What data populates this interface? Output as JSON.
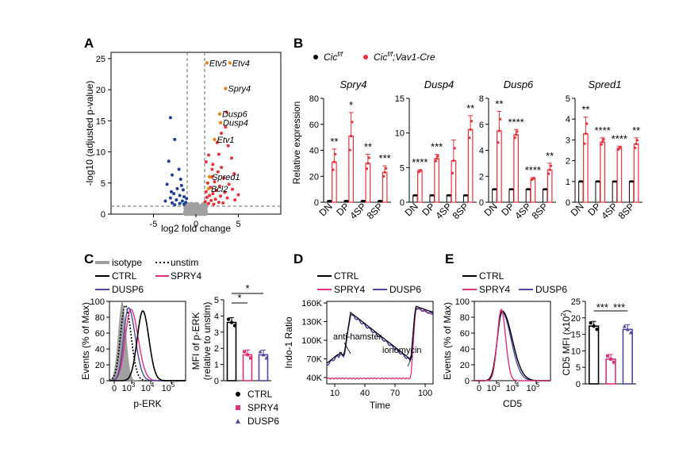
{
  "panels": {
    "A": "A",
    "B": "B",
    "C": "C",
    "D": "D",
    "E": "E"
  },
  "colors": {
    "ctrl": "#000000",
    "cre": "#e8323a",
    "spry4": "#e0307a",
    "dusp6": "#4f46a0",
    "blue_pts": "#1f3f95",
    "grey": "#a0a0a0",
    "gene_label_orange": "#e08a1e"
  },
  "chart_data": [
    {
      "id": "A",
      "type": "scatter",
      "xlabel": "log2 fold change",
      "ylabel": "-log10 (adjusted p-value)",
      "xlim": [
        -10,
        10
      ],
      "ylim": [
        0,
        26
      ],
      "xticks": [
        "-5",
        "0",
        "5"
      ],
      "yticks": [
        "0",
        "5",
        "10",
        "15",
        "20",
        "25"
      ],
      "thresholds": {
        "x": [
          -1,
          1
        ],
        "y": 1.3
      },
      "labeled_genes": [
        {
          "name": "Etv5",
          "x": 1.3,
          "y": 24.3
        },
        {
          "name": "Etv4",
          "x": 4.0,
          "y": 24.3
        },
        {
          "name": "Spry4",
          "x": 3.5,
          "y": 20.2
        },
        {
          "name": "Dusp6",
          "x": 2.8,
          "y": 16.1
        },
        {
          "name": "Dusp4",
          "x": 2.9,
          "y": 14.7
        },
        {
          "name": "Etv1",
          "x": 2.2,
          "y": 12.0
        },
        {
          "name": "Spred1",
          "x": 1.6,
          "y": 6.0
        },
        {
          "name": "Bcl2",
          "x": 1.5,
          "y": 4.1
        }
      ],
      "blue_points": [
        [
          -3.0,
          15.5
        ],
        [
          -2.5,
          12.0
        ],
        [
          -3.2,
          8.5
        ],
        [
          -2.0,
          7.2
        ],
        [
          -2.8,
          6.3
        ],
        [
          -1.8,
          5.6
        ],
        [
          -3.4,
          4.8
        ],
        [
          -2.2,
          4.1
        ],
        [
          -1.5,
          3.9
        ],
        [
          -2.6,
          3.3
        ],
        [
          -1.9,
          3.0
        ],
        [
          -1.4,
          2.8
        ],
        [
          -3.0,
          2.6
        ],
        [
          -2.3,
          2.3
        ],
        [
          -1.6,
          2.1
        ],
        [
          -1.2,
          1.9
        ],
        [
          -2.8,
          1.8
        ],
        [
          -1.9,
          1.7
        ],
        [
          -1.4,
          1.6
        ],
        [
          -2.5,
          1.5
        ],
        [
          -3.6,
          2.1
        ],
        [
          -1.1,
          2.5
        ],
        [
          -1.7,
          4.6
        ],
        [
          -2.9,
          3.6
        ]
      ],
      "red_points": [
        [
          3.5,
          14.0
        ],
        [
          3.0,
          13.0
        ],
        [
          2.5,
          11.5
        ],
        [
          3.8,
          11.0
        ],
        [
          1.5,
          9.5
        ],
        [
          4.2,
          9.0
        ],
        [
          2.0,
          8.0
        ],
        [
          3.0,
          7.5
        ],
        [
          2.6,
          6.8
        ],
        [
          4.5,
          6.5
        ],
        [
          1.9,
          6.0
        ],
        [
          3.3,
          5.8
        ],
        [
          2.2,
          5.2
        ],
        [
          1.4,
          5.0
        ],
        [
          3.9,
          4.8
        ],
        [
          2.8,
          4.5
        ],
        [
          1.7,
          4.3
        ],
        [
          4.3,
          4.0
        ],
        [
          2.4,
          3.8
        ],
        [
          1.2,
          3.6
        ],
        [
          3.4,
          3.5
        ],
        [
          2.0,
          3.3
        ],
        [
          1.6,
          3.0
        ],
        [
          2.9,
          2.9
        ],
        [
          1.3,
          2.7
        ],
        [
          3.7,
          2.6
        ],
        [
          2.3,
          2.4
        ],
        [
          1.8,
          2.2
        ],
        [
          1.1,
          2.0
        ],
        [
          2.7,
          1.9
        ],
        [
          3.2,
          1.8
        ],
        [
          1.5,
          1.7
        ],
        [
          2.1,
          1.6
        ],
        [
          4.6,
          2.3
        ],
        [
          5.0,
          3.1
        ],
        [
          1.9,
          7.2
        ],
        [
          1.2,
          8.4
        ],
        [
          2.7,
          9.6
        ],
        [
          3.6,
          16.4
        ]
      ]
    },
    {
      "id": "B",
      "type": "bar",
      "legend": {
        "ctrl": "Cic",
        "ctrl_sup": "f/f",
        "cre": "Cic",
        "cre_sup": "f/f",
        "cre_suffix": ";Vav1-Cre"
      },
      "ylabel": "Relative expression",
      "categories": [
        "DN",
        "DP",
        "4SP",
        "8SP"
      ],
      "subplots": [
        {
          "gene": "Spry4",
          "ylim": [
            0,
            80
          ],
          "yticks": [
            "0",
            "20",
            "40",
            "60",
            "80"
          ],
          "ctrl": [
            1,
            1,
            1,
            1
          ],
          "cre": [
            31,
            51,
            30,
            23
          ],
          "err": [
            10,
            18,
            7,
            5
          ],
          "sig": [
            "**",
            "*",
            "**",
            "***"
          ]
        },
        {
          "gene": "Dusp4",
          "ylim": [
            0,
            15
          ],
          "yticks": [
            "0",
            "5",
            "10",
            "15"
          ],
          "ctrl": [
            1,
            1,
            1,
            1
          ],
          "cre": [
            4.5,
            6.3,
            6.0,
            10.5
          ],
          "err": [
            0.2,
            0.6,
            3.0,
            2.0
          ],
          "sig": [
            "****",
            "***",
            "",
            "**"
          ]
        },
        {
          "gene": "Dusp6",
          "ylim": [
            0,
            8
          ],
          "yticks": [
            "0",
            "2",
            "4",
            "6",
            "8"
          ],
          "ctrl": [
            1,
            1,
            1,
            1
          ],
          "cre": [
            5.5,
            5.2,
            1.8,
            2.5
          ],
          "err": [
            1.5,
            0.4,
            0.1,
            0.5
          ],
          "sig": [
            "**",
            "****",
            "****",
            "**"
          ]
        },
        {
          "gene": "Spred1",
          "ylim": [
            0,
            5
          ],
          "yticks": [
            "0",
            "1",
            "2",
            "3",
            "4",
            "5"
          ],
          "ctrl": [
            1,
            1,
            1,
            1
          ],
          "cre": [
            3.3,
            2.9,
            2.6,
            2.8
          ],
          "err": [
            0.8,
            0.2,
            0.1,
            0.3
          ],
          "sig": [
            "**",
            "****",
            "****",
            "**"
          ]
        }
      ]
    },
    {
      "id": "C",
      "type": "line",
      "legend": {
        "isotype": "isotype",
        "unstim": "unstim",
        "ctrl": "CTRL",
        "spry4": "SPRY4",
        "dusp6": "DUSP6"
      },
      "xlabel": "p-ERK",
      "ylabel": "Events (% of Max)",
      "xticks": [
        "0",
        "10",
        "3",
        "10",
        "4",
        "10",
        "5"
      ],
      "yticks": [
        "0",
        "20",
        "40",
        "60",
        "80",
        "100"
      ],
      "bar": {
        "ylabel": "MFI of p-ERK",
        "ylabel2": "(relative to unstim)",
        "ylim": [
          0,
          5
        ],
        "yticks": [
          "0",
          "1",
          "2",
          "3",
          "4",
          "5"
        ],
        "categories": [
          "CTRL",
          "SPRY4",
          "DUSP6"
        ],
        "values": [
          3.6,
          1.6,
          1.6
        ],
        "sig": [
          "*",
          "*"
        ]
      }
    },
    {
      "id": "D",
      "type": "line",
      "legend": {
        "ctrl": "CTRL",
        "spry4": "SPRY4",
        "dusp6": "DUSP6"
      },
      "xlabel": "Time",
      "ylabel": "Indo-1 Ratio",
      "xticks": [
        "10",
        "40",
        "70",
        "100"
      ],
      "yticks": [
        "40K",
        "70K",
        "100K",
        "130K",
        "160K"
      ],
      "annotations": [
        "anti-hamster",
        "ionomycin"
      ]
    },
    {
      "id": "E",
      "type": "line",
      "legend": {
        "ctrl": "CTRL",
        "spry4": "SPRY4",
        "dusp6": "DUSP6"
      },
      "xlabel": "CD5",
      "ylabel": "Events (% of Max)",
      "xticks": [
        "0",
        "10",
        "3",
        "10",
        "4",
        "10",
        "5"
      ],
      "yticks": [
        "0",
        "20",
        "40",
        "60",
        "80",
        "100"
      ],
      "bar": {
        "ylabel": "CD5 MFI (x10",
        "ylabel_sup": "2",
        "ylabel_end": ")",
        "ylim": [
          0,
          25
        ],
        "yticks": [
          "0",
          "5",
          "10",
          "15",
          "20",
          "25"
        ],
        "categories": [
          "CTRL",
          "SPRY4",
          "DUSP6"
        ],
        "values": [
          17.5,
          7.5,
          16.5
        ],
        "sig": [
          "***",
          "***"
        ]
      }
    }
  ]
}
